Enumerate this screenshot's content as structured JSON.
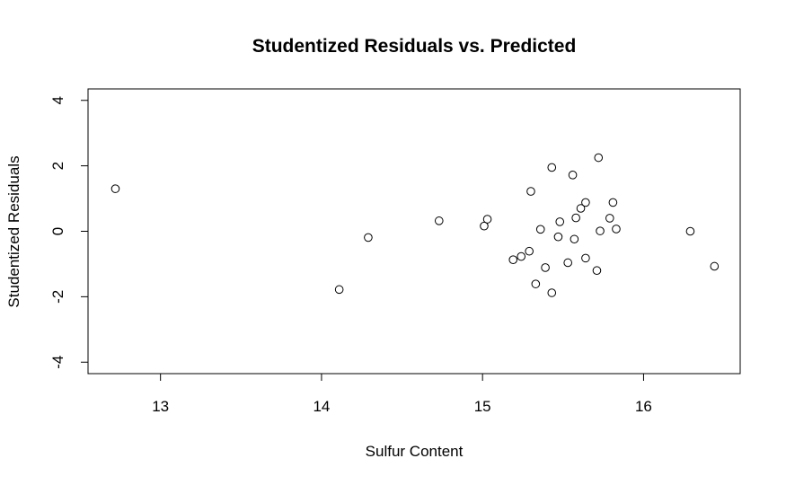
{
  "chart_data": {
    "type": "scatter",
    "title": "Studentized Residuals vs. Predicted",
    "xlabel": "Sulfur Content",
    "ylabel": "Studentized Residuals",
    "xlim": [
      12.55,
      16.6
    ],
    "ylim": [
      -4.35,
      4.35
    ],
    "xticks": [
      13,
      14,
      15,
      16
    ],
    "yticks": [
      -4,
      -2,
      0,
      2,
      4
    ],
    "xtick_labels": [
      "13",
      "14",
      "15",
      "16"
    ],
    "ytick_labels": [
      "-4",
      "-2",
      "0",
      "2",
      "4"
    ],
    "grid": false,
    "marker": "open-circle",
    "points": [
      {
        "x": 12.72,
        "y": 1.3
      },
      {
        "x": 14.11,
        "y": -1.78
      },
      {
        "x": 14.29,
        "y": -0.19
      },
      {
        "x": 14.73,
        "y": 0.32
      },
      {
        "x": 15.01,
        "y": 0.16
      },
      {
        "x": 15.03,
        "y": 0.37
      },
      {
        "x": 15.19,
        "y": -0.87
      },
      {
        "x": 15.24,
        "y": -0.77
      },
      {
        "x": 15.29,
        "y": -0.61
      },
      {
        "x": 15.3,
        "y": 1.22
      },
      {
        "x": 15.33,
        "y": -1.61
      },
      {
        "x": 15.36,
        "y": 0.06
      },
      {
        "x": 15.39,
        "y": -1.11
      },
      {
        "x": 15.43,
        "y": 1.95
      },
      {
        "x": 15.43,
        "y": -1.88
      },
      {
        "x": 15.47,
        "y": -0.17
      },
      {
        "x": 15.48,
        "y": 0.29
      },
      {
        "x": 15.53,
        "y": -0.96
      },
      {
        "x": 15.56,
        "y": 1.72
      },
      {
        "x": 15.57,
        "y": -0.24
      },
      {
        "x": 15.58,
        "y": 0.41
      },
      {
        "x": 15.61,
        "y": 0.7
      },
      {
        "x": 15.64,
        "y": 0.88
      },
      {
        "x": 15.64,
        "y": -0.82
      },
      {
        "x": 15.71,
        "y": -1.2
      },
      {
        "x": 15.72,
        "y": 2.25
      },
      {
        "x": 15.73,
        "y": 0.01
      },
      {
        "x": 15.79,
        "y": 0.4
      },
      {
        "x": 15.81,
        "y": 0.88
      },
      {
        "x": 15.83,
        "y": 0.07
      },
      {
        "x": 16.29,
        "y": 0.0
      },
      {
        "x": 16.44,
        "y": -1.07
      }
    ]
  }
}
